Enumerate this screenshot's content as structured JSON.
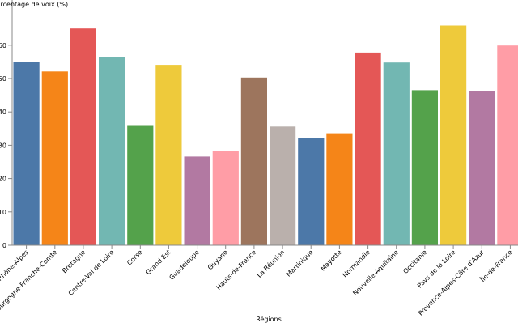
{
  "chart_data": {
    "type": "bar",
    "title": "",
    "xlabel": "Régions",
    "ylabel": "Pourcentage de voix (%)",
    "ylim": [
      0,
      65
    ],
    "grid": false,
    "categories": [
      "Auvergne-Rhône-Alpes",
      "Bourgogne-Franche-Comté",
      "Bretagne",
      "Centre-Val de Loire",
      "Corse",
      "Grand Est",
      "Guadeloupe",
      "Guyane",
      "Hauts-de-France",
      "La Réunion",
      "Martinique",
      "Mayotte",
      "Normandie",
      "Nouvelle-Aquitaine",
      "Occitanie",
      "Pays de la Loire",
      "Provence-Alpes-Côte d'Azur",
      "Île-de-France"
    ],
    "values": [
      55.0,
      52.1,
      65.0,
      56.4,
      35.8,
      54.1,
      26.6,
      28.2,
      50.3,
      35.6,
      32.2,
      33.6,
      57.8,
      54.8,
      46.5,
      65.9,
      46.2,
      59.9
    ],
    "colors": [
      "#4c78a8",
      "#f58518",
      "#e45756",
      "#72b7b2",
      "#54a24b",
      "#eeca3b",
      "#b279a2",
      "#ff9da6",
      "#9d755d",
      "#bab0ac",
      "#4c78a8",
      "#f58518",
      "#e45756",
      "#72b7b2",
      "#54a24b",
      "#eeca3b",
      "#b279a2",
      "#ff9da6"
    ],
    "y_ticks": [
      0,
      10,
      20,
      30,
      40,
      50,
      60
    ]
  }
}
